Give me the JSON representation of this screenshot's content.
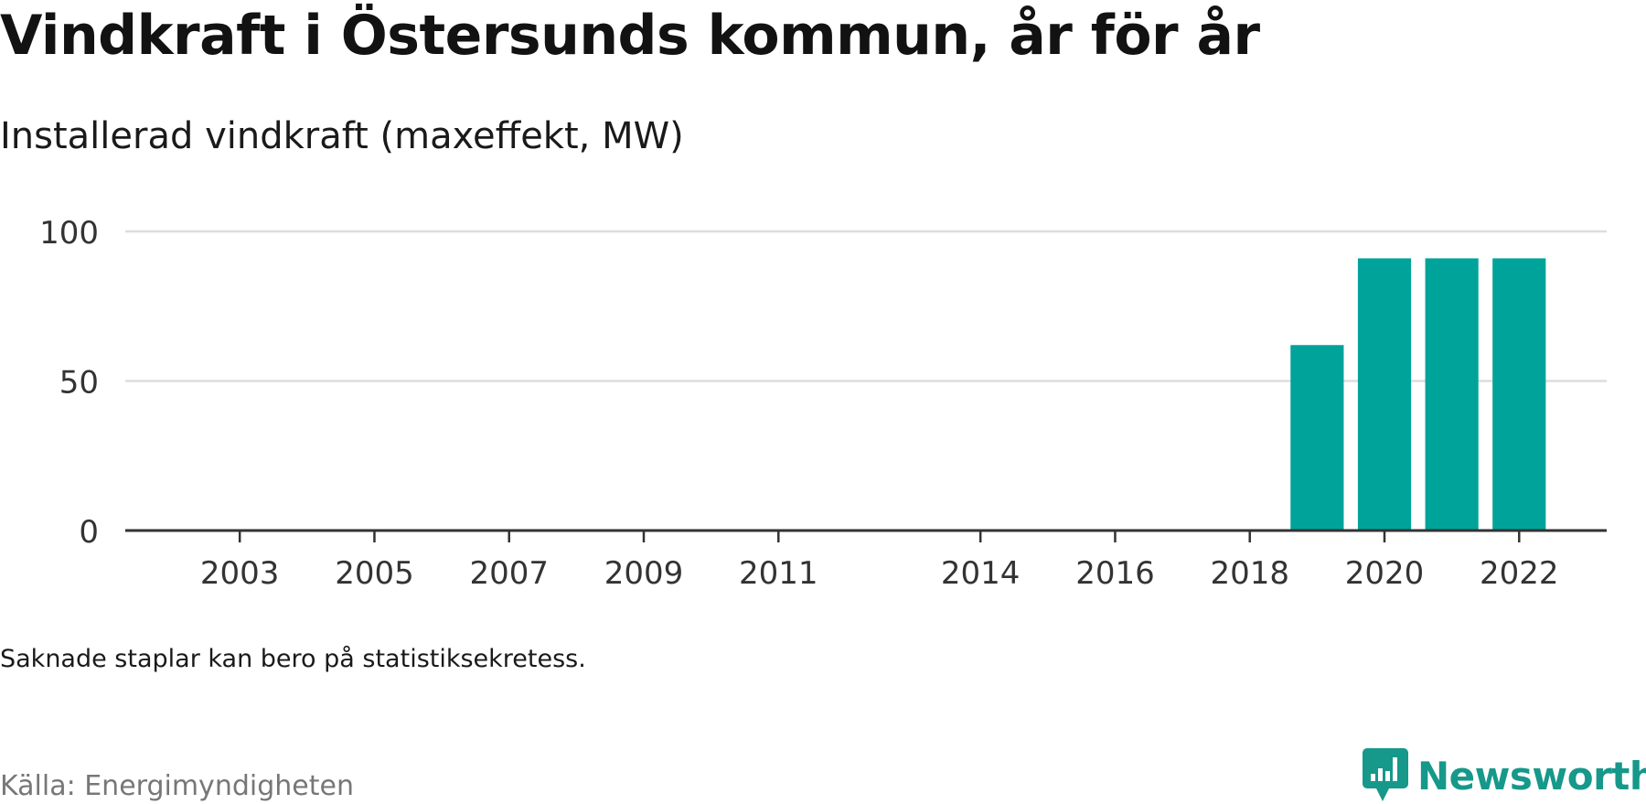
{
  "header": {
    "title": "Vindkraft i Östersunds kommun, år för år",
    "subtitle": "Installerad vindkraft (maxeffekt, MW)"
  },
  "footer": {
    "note": "Saknade staplar kan bero på statistiksekretess.",
    "source": "Källa: Energimyndigheten",
    "brand": "Newsworthy"
  },
  "colors": {
    "bar": "#00a39a",
    "grid": "#dddddd",
    "axis": "#333333",
    "brand": "#16988a"
  },
  "chart_data": {
    "type": "bar",
    "x_range": [
      2001.3,
      2023.3
    ],
    "xticks": [
      2003,
      2005,
      2007,
      2009,
      2011,
      2014,
      2016,
      2018,
      2020,
      2022
    ],
    "ylim": [
      0,
      100
    ],
    "yticks": [
      0,
      50,
      100
    ],
    "grid": true,
    "series": [
      {
        "x": [
          2019,
          2020,
          2021,
          2022
        ],
        "values": [
          62,
          91,
          91,
          91
        ]
      }
    ]
  }
}
